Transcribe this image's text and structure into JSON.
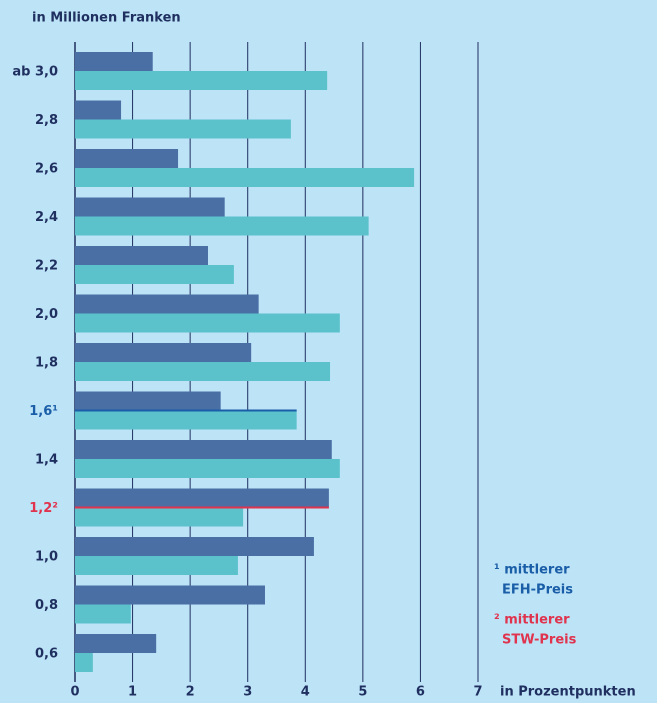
{
  "chart_data": {
    "type": "bar",
    "orientation": "horizontal",
    "y_axis_label": "in Millionen Franken",
    "x_axis_label": "in Prozentpunkten",
    "categories": [
      "ab 3,0",
      "2,8",
      "2,6",
      "2,4",
      "2,2",
      "2,0",
      "1,8",
      "1,6¹",
      "1,4",
      "1,2²",
      "1,0",
      "0,8",
      "0,6"
    ],
    "category_colors": [
      null,
      null,
      null,
      null,
      null,
      null,
      null,
      "#1a5ea8",
      null,
      "#e0334d",
      null,
      null,
      null
    ],
    "series": [
      {
        "color": "#4a6fa5",
        "values": [
          1.35,
          0.8,
          1.79,
          2.6,
          2.31,
          3.19,
          3.06,
          2.53,
          4.46,
          4.41,
          4.15,
          3.3,
          1.41
        ]
      },
      {
        "color": "#5bc2cc",
        "values": [
          4.38,
          3.75,
          5.89,
          5.1,
          2.76,
          4.6,
          4.43,
          3.85,
          4.6,
          2.92,
          2.83,
          0.97,
          0.31
        ]
      }
    ],
    "xlim": [
      0,
      7
    ],
    "xticks": [
      0,
      1,
      2,
      3,
      4,
      5,
      6,
      7
    ],
    "grid": true,
    "annotations": [
      {
        "lines": [
          "¹ mittlerer",
          "EFH-Preis"
        ],
        "color": "#1a5ea8"
      },
      {
        "lines": [
          "² mittlerer",
          "STW-Preis"
        ],
        "color": "#e0334d"
      }
    ]
  }
}
